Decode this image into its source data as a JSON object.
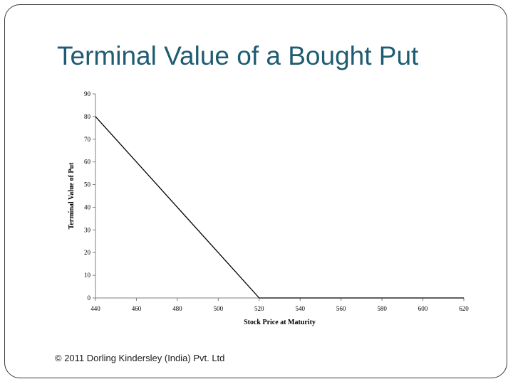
{
  "slide": {
    "title": "Terminal Value of a Bought Put",
    "footer": "© 2011 Dorling Kindersley (India) Pvt. Ltd"
  },
  "colors": {
    "title": "#1f5b72",
    "line": "#000000",
    "axis": "#7f7f7f"
  },
  "chart_data": {
    "type": "line",
    "title": "",
    "xlabel": "Stock Price at Maturity",
    "ylabel": "Terminal Value of Put",
    "xlim": [
      440,
      620
    ],
    "ylim": [
      0,
      90
    ],
    "x_ticks": [
      440,
      460,
      480,
      500,
      520,
      540,
      560,
      580,
      600,
      620
    ],
    "y_ticks": [
      0,
      10,
      20,
      30,
      40,
      50,
      60,
      70,
      80,
      90
    ],
    "grid": false,
    "legend": "none",
    "series": [
      {
        "x": [
          440,
          520,
          620
        ],
        "values": [
          80,
          0,
          0
        ]
      }
    ]
  }
}
